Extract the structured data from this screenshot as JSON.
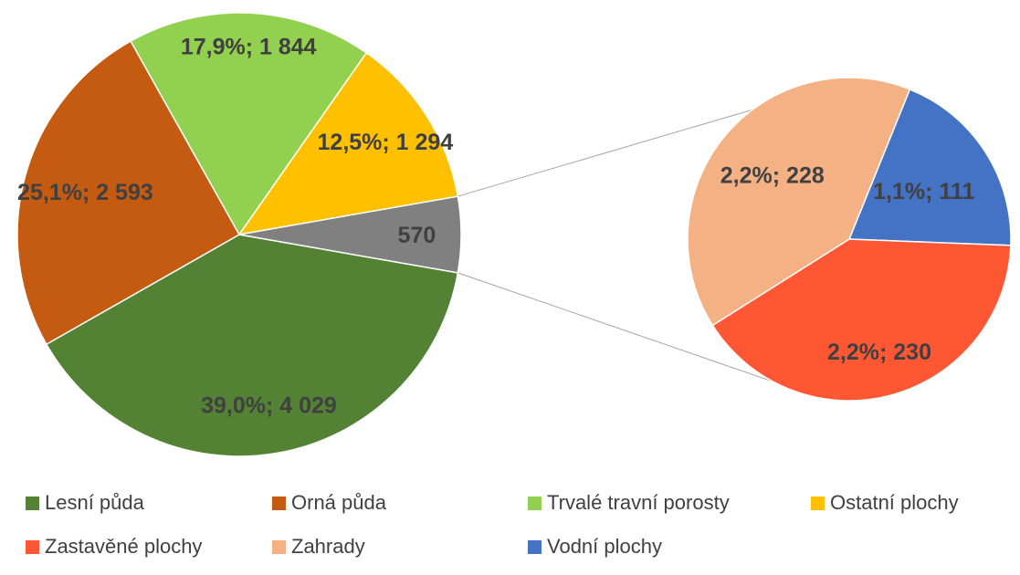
{
  "chart_data": {
    "type": "pie",
    "variant": "pie-of-pie",
    "main_slices": [
      {
        "name": "Lesní půda",
        "value": 4029,
        "label": "39,0%;  4 029",
        "color": "#548235"
      },
      {
        "name": "Orná půda",
        "value": 2593,
        "label": "25,1%;  2 593",
        "color": "#C55A11"
      },
      {
        "name": "Trvalé travní porosty",
        "value": 1844,
        "label": "17,9%;  1 844",
        "color": "#92D050"
      },
      {
        "name": "Ostatní plochy",
        "value": 1294,
        "label": "12,5%;  1 294",
        "color": "#FFC000"
      },
      {
        "name": "",
        "value": 570,
        "label": "570",
        "color": "#808080"
      }
    ],
    "secondary_slices": [
      {
        "name": "Vodní plochy",
        "value": 111,
        "label": "1,1%;   111",
        "color": "#4472C4"
      },
      {
        "name": "Zastavěné plochy",
        "value": 230,
        "label": "2,2%;   230",
        "color": "#FF5733"
      },
      {
        "name": "Zahrady",
        "value": 228,
        "label": "2,2%;   228",
        "color": "#F4B183"
      }
    ],
    "legend": {
      "placement": "bottom",
      "items": [
        {
          "name": "Lesní půda",
          "color": "#548235"
        },
        {
          "name": "Orná půda",
          "color": "#C55A11"
        },
        {
          "name": "Trvalé travní porosty",
          "color": "#92D050"
        },
        {
          "name": "Ostatní plochy",
          "color": "#FFC000"
        },
        {
          "name": "Zastavěné plochy",
          "color": "#FF5733"
        },
        {
          "name": "Zahrady",
          "color": "#F4B183"
        },
        {
          "name": "Vodní plochy",
          "color": "#4472C4"
        }
      ]
    }
  }
}
